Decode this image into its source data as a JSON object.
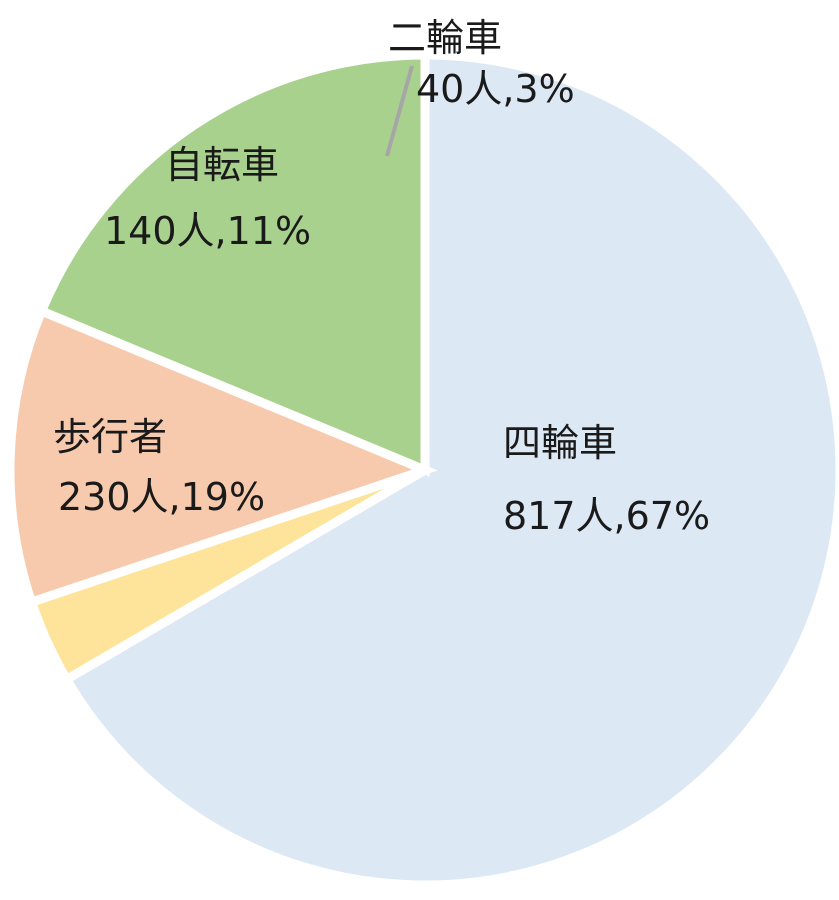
{
  "chart_data": {
    "type": "pie",
    "title": "",
    "categories": [
      "四輪車",
      "二輪車",
      "自転車",
      "歩行者"
    ],
    "values": [
      817,
      40,
      140,
      230
    ],
    "percent_labels": [
      "67%",
      "3%",
      "11%",
      "19%"
    ],
    "data_labels": [
      "817人,67%",
      "40人,3%",
      "140人,11%",
      "230人,19%"
    ],
    "colors": [
      "#dde8f5",
      "#fde49a",
      "#f7c9ad",
      "#a9d18e"
    ],
    "legend": "none",
    "start": "12 o'clock",
    "direction": "clockwise"
  }
}
